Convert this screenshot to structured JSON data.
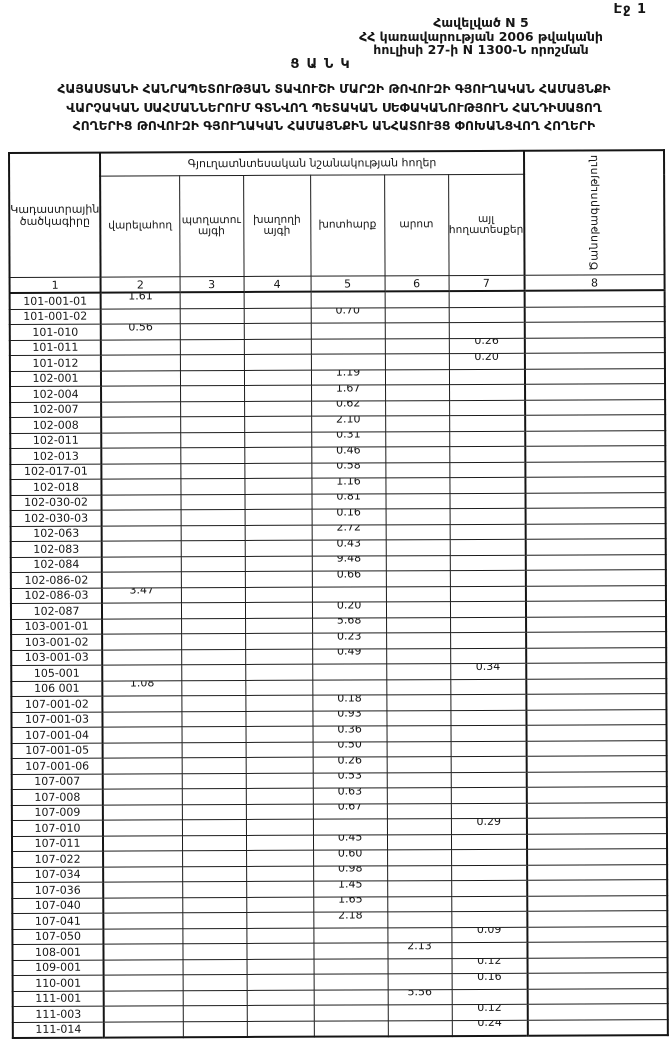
{
  "page": {
    "label": "Էջ 1"
  },
  "header_block": {
    "line1": "Հավելված N 5",
    "line2": "ՀՀ կառավարության 2006 թվականի",
    "line3": "հուլիսի 27-ի N 1300-Ն որոշման"
  },
  "title": "ՑԱՆԿ",
  "subtitle_lines": [
    "ՀԱՅԱՍՏԱՆԻ ՀԱՆՐԱՊԵՏՈՒԹՅԱՆ ՏԱՎՈՒՇԻ ՄԱՐԶԻ ԹՈՎՈՒԶԻ ԳՅՈՒՂԱԿԱՆ ՀԱՄԱՅՆՔԻ",
    "ՎԱՐՉԱԿԱՆ ՍԱՀՄԱՆՆԵՐՈՒՄ ԳՏՆՎՈՂ ՊԵՏԱԿԱՆ ՍԵՓԱԿԱՆՈՒԹՅՈՒՆ ՀԱՆԴԻՍԱՑՈՂ",
    "ՀՈՂԵՐԻՑ ԹՈՎՈՒԶԻ ԳՅՈՒՂԱԿԱՆ ՀԱՄԱՅՆՔԻՆ ԱՆՀԱՏՈՒՅՑ ՓՈԽԱՆՑՎՈՂ ՀՈՂԵՐԻ"
  ],
  "table": {
    "group_header": "Գյուղատնտեսական նշանակության հողեր",
    "col1_header": "Կադաստրային ծածկագիրը",
    "sub_headers": [
      "վարելահող",
      "պտղատու այգի",
      "խաղողի այգի",
      "խոտհարք",
      "արոտ",
      "այլ հողատեսքեր"
    ],
    "col8_header": "Ծանոթագրություն",
    "number_row": [
      "1",
      "2",
      "3",
      "4",
      "5",
      "6",
      "7",
      "8"
    ],
    "rows": [
      [
        "101-001-01",
        "1.61",
        "",
        "",
        "",
        "",
        "",
        ""
      ],
      [
        "101-001-02",
        "",
        "",
        "",
        "0.70",
        "",
        "",
        ""
      ],
      [
        "101-010",
        "0.56",
        "",
        "",
        "",
        "",
        "",
        ""
      ],
      [
        "101-011",
        "",
        "",
        "",
        "",
        "",
        "0.26",
        ""
      ],
      [
        "101-012",
        "",
        "",
        "",
        "",
        "",
        "0.20",
        ""
      ],
      [
        "102-001",
        "",
        "",
        "",
        "1.19",
        "",
        "",
        ""
      ],
      [
        "102-004",
        "",
        "",
        "",
        "1.67",
        "",
        "",
        ""
      ],
      [
        "102-007",
        "",
        "",
        "",
        "0.62",
        "",
        "",
        ""
      ],
      [
        "102-008",
        "",
        "",
        "",
        "2.10",
        "",
        "",
        ""
      ],
      [
        "102-011",
        "",
        "",
        "",
        "0.31",
        "",
        "",
        ""
      ],
      [
        "102-013",
        "",
        "",
        "",
        "0.46",
        "",
        "",
        ""
      ],
      [
        "102-017-01",
        "",
        "",
        "",
        "0.58",
        "",
        "",
        ""
      ],
      [
        "102-018",
        "",
        "",
        "",
        "1.16",
        "",
        "",
        ""
      ],
      [
        "102-030-02",
        "",
        "",
        "",
        "0.81",
        "",
        "",
        ""
      ],
      [
        "102-030-03",
        "",
        "",
        "",
        "0.16",
        "",
        "",
        ""
      ],
      [
        "102-063",
        "",
        "",
        "",
        "2.72",
        "",
        "",
        ""
      ],
      [
        "102-083",
        "",
        "",
        "",
        "0.43",
        "",
        "",
        ""
      ],
      [
        "102-084",
        "",
        "",
        "",
        "9.48",
        "",
        "",
        ""
      ],
      [
        "102-086-02",
        "",
        "",
        "",
        "0.66",
        "",
        "",
        ""
      ],
      [
        "102-086-03",
        "3.47",
        "",
        "",
        "",
        "",
        "",
        ""
      ],
      [
        "102-087",
        "",
        "",
        "",
        "0.20",
        "",
        "",
        ""
      ],
      [
        "103-001-01",
        "",
        "",
        "",
        "5.68",
        "",
        "",
        ""
      ],
      [
        "103-001-02",
        "",
        "",
        "",
        "0.23",
        "",
        "",
        ""
      ],
      [
        "103-001-03",
        "",
        "",
        "",
        "0.49",
        "",
        "",
        ""
      ],
      [
        "105-001",
        "",
        "",
        "",
        "",
        "",
        "0.34",
        ""
      ],
      [
        "106 001",
        "1.08",
        "",
        "",
        "",
        "",
        "",
        ""
      ],
      [
        "107-001-02",
        "",
        "",
        "",
        "0.18",
        "",
        "",
        ""
      ],
      [
        "107-001-03",
        "",
        "",
        "",
        "0.93",
        "",
        "",
        ""
      ],
      [
        "107-001-04",
        "",
        "",
        "",
        "0.36",
        "",
        "",
        ""
      ],
      [
        "107-001-05",
        "",
        "",
        "",
        "0.50",
        "",
        "",
        ""
      ],
      [
        "107-001-06",
        "",
        "",
        "",
        "0.26",
        "",
        "",
        ""
      ],
      [
        "107-007",
        "",
        "",
        "",
        "0.53",
        "",
        "",
        ""
      ],
      [
        "107-008",
        "",
        "",
        "",
        "0.63",
        "",
        "",
        ""
      ],
      [
        "107-009",
        "",
        "",
        "",
        "0.67",
        "",
        "",
        ""
      ],
      [
        "107-010",
        "",
        "",
        "",
        "",
        "",
        "0.29",
        ""
      ],
      [
        "107-011",
        "",
        "",
        "",
        "0.45",
        "",
        "",
        ""
      ],
      [
        "107-022",
        "",
        "",
        "",
        "0.60",
        "",
        "",
        ""
      ],
      [
        "107-034",
        "",
        "",
        "",
        "0.98",
        "",
        "",
        ""
      ],
      [
        "107-036",
        "",
        "",
        "",
        "1.45",
        "",
        "",
        ""
      ],
      [
        "107-040",
        "",
        "",
        "",
        "1.65",
        "",
        "",
        ""
      ],
      [
        "107-041",
        "",
        "",
        "",
        "2.18",
        "",
        "",
        ""
      ],
      [
        "107-050",
        "",
        "",
        "",
        "",
        "",
        "0.09",
        ""
      ],
      [
        "108-001",
        "",
        "",
        "",
        "",
        "2.13",
        "",
        ""
      ],
      [
        "109-001",
        "",
        "",
        "",
        "",
        "",
        "0.12",
        ""
      ],
      [
        "110-001",
        "",
        "",
        "",
        "",
        "",
        "0.16",
        ""
      ],
      [
        "111-001",
        "",
        "",
        "",
        "",
        "5.56",
        "",
        ""
      ],
      [
        "111-003",
        "",
        "",
        "",
        "",
        "",
        "0.12",
        ""
      ],
      [
        "111-014",
        "",
        "",
        "",
        "",
        "",
        "0.24",
        ""
      ]
    ]
  }
}
